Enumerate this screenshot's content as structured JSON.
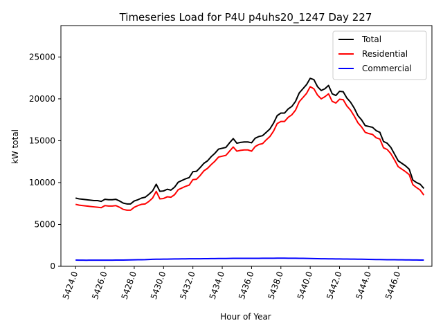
{
  "chart_data": {
    "type": "line",
    "title": "Timeseries Load for P4U p4uhs20_1247  Day 227",
    "xlabel": "Hour of Year",
    "ylabel": "kW total",
    "xlim": [
      5423.0,
      5448.3
    ],
    "ylim": [
      0,
      28750
    ],
    "x_ticks": [
      5424.0,
      5426.0,
      5428.0,
      5430.0,
      5432.0,
      5434.0,
      5436.0,
      5438.0,
      5440.0,
      5442.0,
      5444.0,
      5446.0
    ],
    "x_tick_labels": [
      "5424.0",
      "5426.0",
      "5428.0",
      "5430.0",
      "5432.0",
      "5434.0",
      "5436.0",
      "5438.0",
      "5440.0",
      "5442.0",
      "5444.0",
      "5446.0"
    ],
    "y_ticks": [
      0,
      5000,
      10000,
      15000,
      20000,
      25000
    ],
    "y_tick_labels": [
      "0",
      "5000",
      "10000",
      "15000",
      "20000",
      "25000"
    ],
    "legend_position": "top-right",
    "x": [
      5424.0,
      5424.25,
      5424.5,
      5424.75,
      5425.0,
      5425.25,
      5425.5,
      5425.75,
      5426.0,
      5426.25,
      5426.5,
      5426.75,
      5427.0,
      5427.25,
      5427.5,
      5427.75,
      5428.0,
      5428.25,
      5428.5,
      5428.75,
      5429.0,
      5429.25,
      5429.5,
      5429.75,
      5430.0,
      5430.25,
      5430.5,
      5430.75,
      5431.0,
      5431.25,
      5431.5,
      5431.75,
      5432.0,
      5432.25,
      5432.5,
      5432.75,
      5433.0,
      5433.25,
      5433.5,
      5433.75,
      5434.0,
      5434.25,
      5434.5,
      5434.75,
      5435.0,
      5435.25,
      5435.5,
      5435.75,
      5436.0,
      5436.25,
      5436.5,
      5436.75,
      5437.0,
      5437.25,
      5437.5,
      5437.75,
      5438.0,
      5438.25,
      5438.5,
      5438.75,
      5439.0,
      5439.25,
      5439.5,
      5439.75,
      5440.0,
      5440.25,
      5440.5,
      5440.75,
      5441.0,
      5441.25,
      5441.5,
      5441.75,
      5442.0,
      5442.25,
      5442.5,
      5442.75,
      5443.0,
      5443.25,
      5443.5,
      5443.75,
      5444.0,
      5444.25,
      5444.5,
      5444.75,
      5445.0,
      5445.25,
      5445.5,
      5445.75,
      5446.0,
      5446.25,
      5446.5,
      5446.75,
      5447.0,
      5447.25,
      5447.5,
      5447.75
    ],
    "series": [
      {
        "name": "Total",
        "color": "#000000",
        "values": [
          8150,
          8050,
          8000,
          7950,
          7900,
          7850,
          7850,
          7750,
          8000,
          7950,
          7950,
          8000,
          7800,
          7550,
          7450,
          7450,
          7800,
          7950,
          8150,
          8250,
          8600,
          9000,
          9800,
          8950,
          9000,
          9200,
          9100,
          9450,
          10050,
          10250,
          10450,
          10600,
          11300,
          11350,
          11800,
          12300,
          12600,
          13100,
          13500,
          14000,
          14100,
          14200,
          14750,
          15250,
          14700,
          14800,
          14850,
          14850,
          14750,
          15300,
          15500,
          15600,
          16000,
          16400,
          17100,
          18000,
          18300,
          18300,
          18800,
          19100,
          19700,
          20700,
          21200,
          21700,
          22450,
          22300,
          21450,
          21000,
          21200,
          21600,
          20600,
          20400,
          20900,
          20850,
          20100,
          19600,
          18900,
          18000,
          17500,
          16800,
          16700,
          16600,
          16200,
          16000,
          14900,
          14700,
          14200,
          13400,
          12600,
          12300,
          12000,
          11600,
          10300,
          10000,
          9800,
          9300
        ]
      },
      {
        "name": "Residential",
        "color": "#ff0000",
        "values": [
          7400,
          7300,
          7250,
          7200,
          7150,
          7100,
          7050,
          7000,
          7250,
          7200,
          7200,
          7250,
          7050,
          6800,
          6700,
          6700,
          7050,
          7250,
          7400,
          7450,
          7750,
          8150,
          8950,
          8050,
          8100,
          8300,
          8250,
          8550,
          9150,
          9350,
          9550,
          9700,
          10350,
          10400,
          10850,
          11400,
          11700,
          12150,
          12550,
          13050,
          13150,
          13250,
          13750,
          14250,
          13750,
          13850,
          13900,
          13900,
          13750,
          14300,
          14550,
          14650,
          15100,
          15500,
          16150,
          17050,
          17300,
          17300,
          17800,
          18100,
          18650,
          19650,
          20150,
          20650,
          21450,
          21200,
          20450,
          20000,
          20250,
          20600,
          19700,
          19500,
          19950,
          19900,
          19150,
          18650,
          17950,
          17150,
          16650,
          16000,
          15850,
          15750,
          15350,
          15200,
          14150,
          13950,
          13450,
          12700,
          11900,
          11600,
          11300,
          10950,
          9750,
          9400,
          9100,
          8500
        ]
      },
      {
        "name": "Commercial",
        "color": "#0000ff",
        "values": [
          740,
          735,
          730,
          728,
          730,
          730,
          735,
          730,
          735,
          735,
          735,
          740,
          740,
          740,
          750,
          760,
          770,
          780,
          790,
          800,
          820,
          840,
          850,
          850,
          860,
          860,
          870,
          880,
          880,
          890,
          890,
          900,
          900,
          900,
          900,
          910,
          910,
          915,
          920,
          925,
          925,
          930,
          935,
          945,
          945,
          945,
          950,
          950,
          950,
          955,
          955,
          960,
          960,
          965,
          965,
          970,
          970,
          970,
          965,
          965,
          960,
          955,
          945,
          940,
          930,
          920,
          910,
          900,
          895,
          890,
          885,
          880,
          875,
          870,
          865,
          860,
          855,
          850,
          845,
          840,
          830,
          820,
          810,
          805,
          800,
          790,
          785,
          780,
          775,
          770,
          765,
          760,
          755,
          750,
          745,
          740
        ]
      }
    ]
  }
}
